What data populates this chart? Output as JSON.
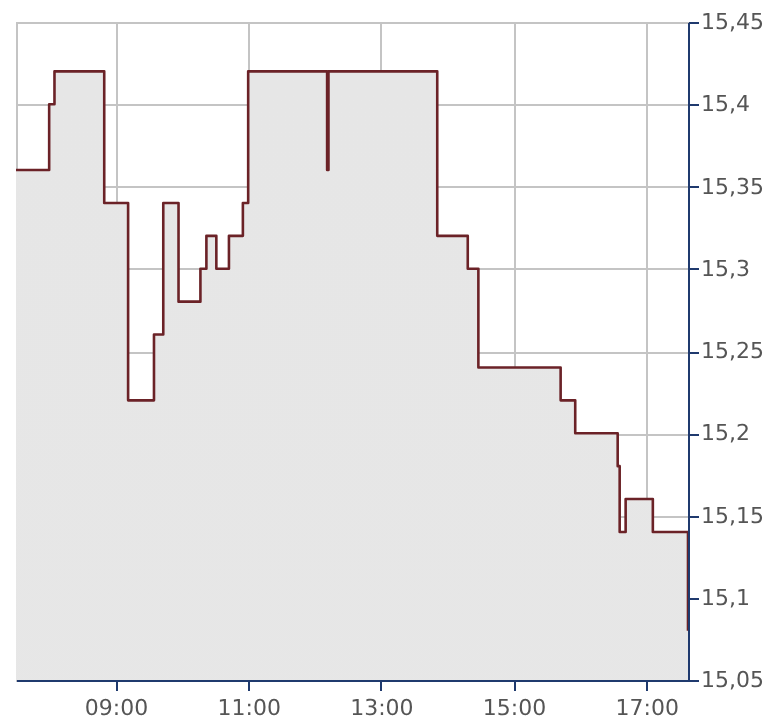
{
  "chart_data": {
    "type": "step",
    "x": [
      7.5,
      8.0,
      8.08,
      8.83,
      9.19,
      9.58,
      9.72,
      9.95,
      10.28,
      10.37,
      10.52,
      10.71,
      10.92,
      11.0,
      12.19,
      12.21,
      13.85,
      14.31,
      14.47,
      15.71,
      15.93,
      16.57,
      16.6,
      16.69,
      17.1,
      17.63
    ],
    "series": [
      {
        "color": "#6b2227",
        "values": [
          15.36,
          15.4,
          15.42,
          15.34,
          15.22,
          15.26,
          15.34,
          15.28,
          15.3,
          15.32,
          15.3,
          15.32,
          15.34,
          15.42,
          15.36,
          15.42,
          15.32,
          15.3,
          15.24,
          15.22,
          15.2,
          15.18,
          15.14,
          15.16,
          15.14,
          15.08
        ]
      }
    ],
    "xlim": [
      7.5,
      17.63
    ],
    "xticks": [
      {
        "value": 9,
        "label": "09:00"
      },
      {
        "value": 11,
        "label": "11:00"
      },
      {
        "value": 13,
        "label": "13:00"
      },
      {
        "value": 15,
        "label": "15:00"
      },
      {
        "value": 17,
        "label": "17:00"
      }
    ],
    "ylim": [
      15.05,
      15.45
    ],
    "yticks": [
      {
        "value": 15.05,
        "label": "15,05"
      },
      {
        "value": 15.1,
        "label": "15,1"
      },
      {
        "value": 15.15,
        "label": "15,15"
      },
      {
        "value": 15.2,
        "label": "15,2"
      },
      {
        "value": 15.25,
        "label": "15,25"
      },
      {
        "value": 15.3,
        "label": "15,3"
      },
      {
        "value": 15.35,
        "label": "15,35"
      },
      {
        "value": 15.4,
        "label": "15,4"
      },
      {
        "value": 15.45,
        "label": "15,45"
      }
    ],
    "grid": true
  }
}
